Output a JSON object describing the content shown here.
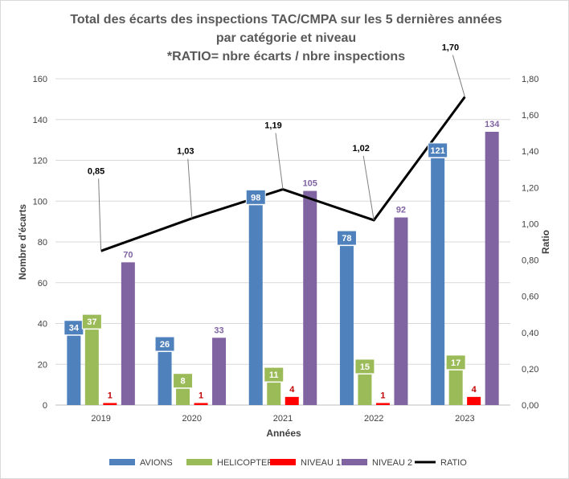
{
  "chart_data": {
    "type": "bar",
    "title_lines": [
      "Total des écarts des inspections TAC/CMPA sur les 5 dernières années",
      "par catégorie et niveau",
      "*RATIO= nbre écarts / nbre inspections"
    ],
    "xlabel": "Années",
    "ylabel": "Nombre d'écarts",
    "y2label": "Ratio",
    "categories": [
      "2019",
      "2020",
      "2021",
      "2022",
      "2023"
    ],
    "ylim": [
      0,
      160
    ],
    "yticks": [
      "0",
      "20",
      "40",
      "60",
      "80",
      "100",
      "120",
      "140",
      "160"
    ],
    "y2lim": [
      0,
      1.8
    ],
    "y2ticks": [
      "0,00",
      "0,20",
      "0,40",
      "0,60",
      "0,80",
      "1,00",
      "1,20",
      "1,40",
      "1,60",
      "1,80"
    ],
    "series": [
      {
        "name": "AVIONS",
        "type": "bar",
        "color": "#4f81bd",
        "label_color": "#ffffff",
        "label_bg": "#4f81bd",
        "values": [
          34,
          26,
          98,
          78,
          121
        ]
      },
      {
        "name": "HELICOPTERES",
        "type": "bar",
        "color": "#9bbb59",
        "label_color": "#ffffff",
        "label_bg": "#9bbb59",
        "values": [
          37,
          8,
          11,
          15,
          17
        ]
      },
      {
        "name": "NIVEAU 1",
        "type": "bar",
        "color": "#ff0000",
        "label_color": "#c00000",
        "label_bg": "",
        "values": [
          1,
          1,
          4,
          1,
          4
        ]
      },
      {
        "name": "NIVEAU 2",
        "type": "bar",
        "color": "#8064a2",
        "label_color": "#8064a2",
        "label_bg": "",
        "values": [
          70,
          33,
          105,
          92,
          134
        ]
      },
      {
        "name": "RATIO",
        "type": "line",
        "axis": "secondary",
        "color": "#000000",
        "values": [
          0.85,
          1.03,
          1.19,
          1.02,
          1.7
        ],
        "labels": [
          "0,85",
          "1,03",
          "1,19",
          "1,02",
          "1,70"
        ]
      }
    ],
    "grid": true,
    "legend_position": "bottom"
  }
}
